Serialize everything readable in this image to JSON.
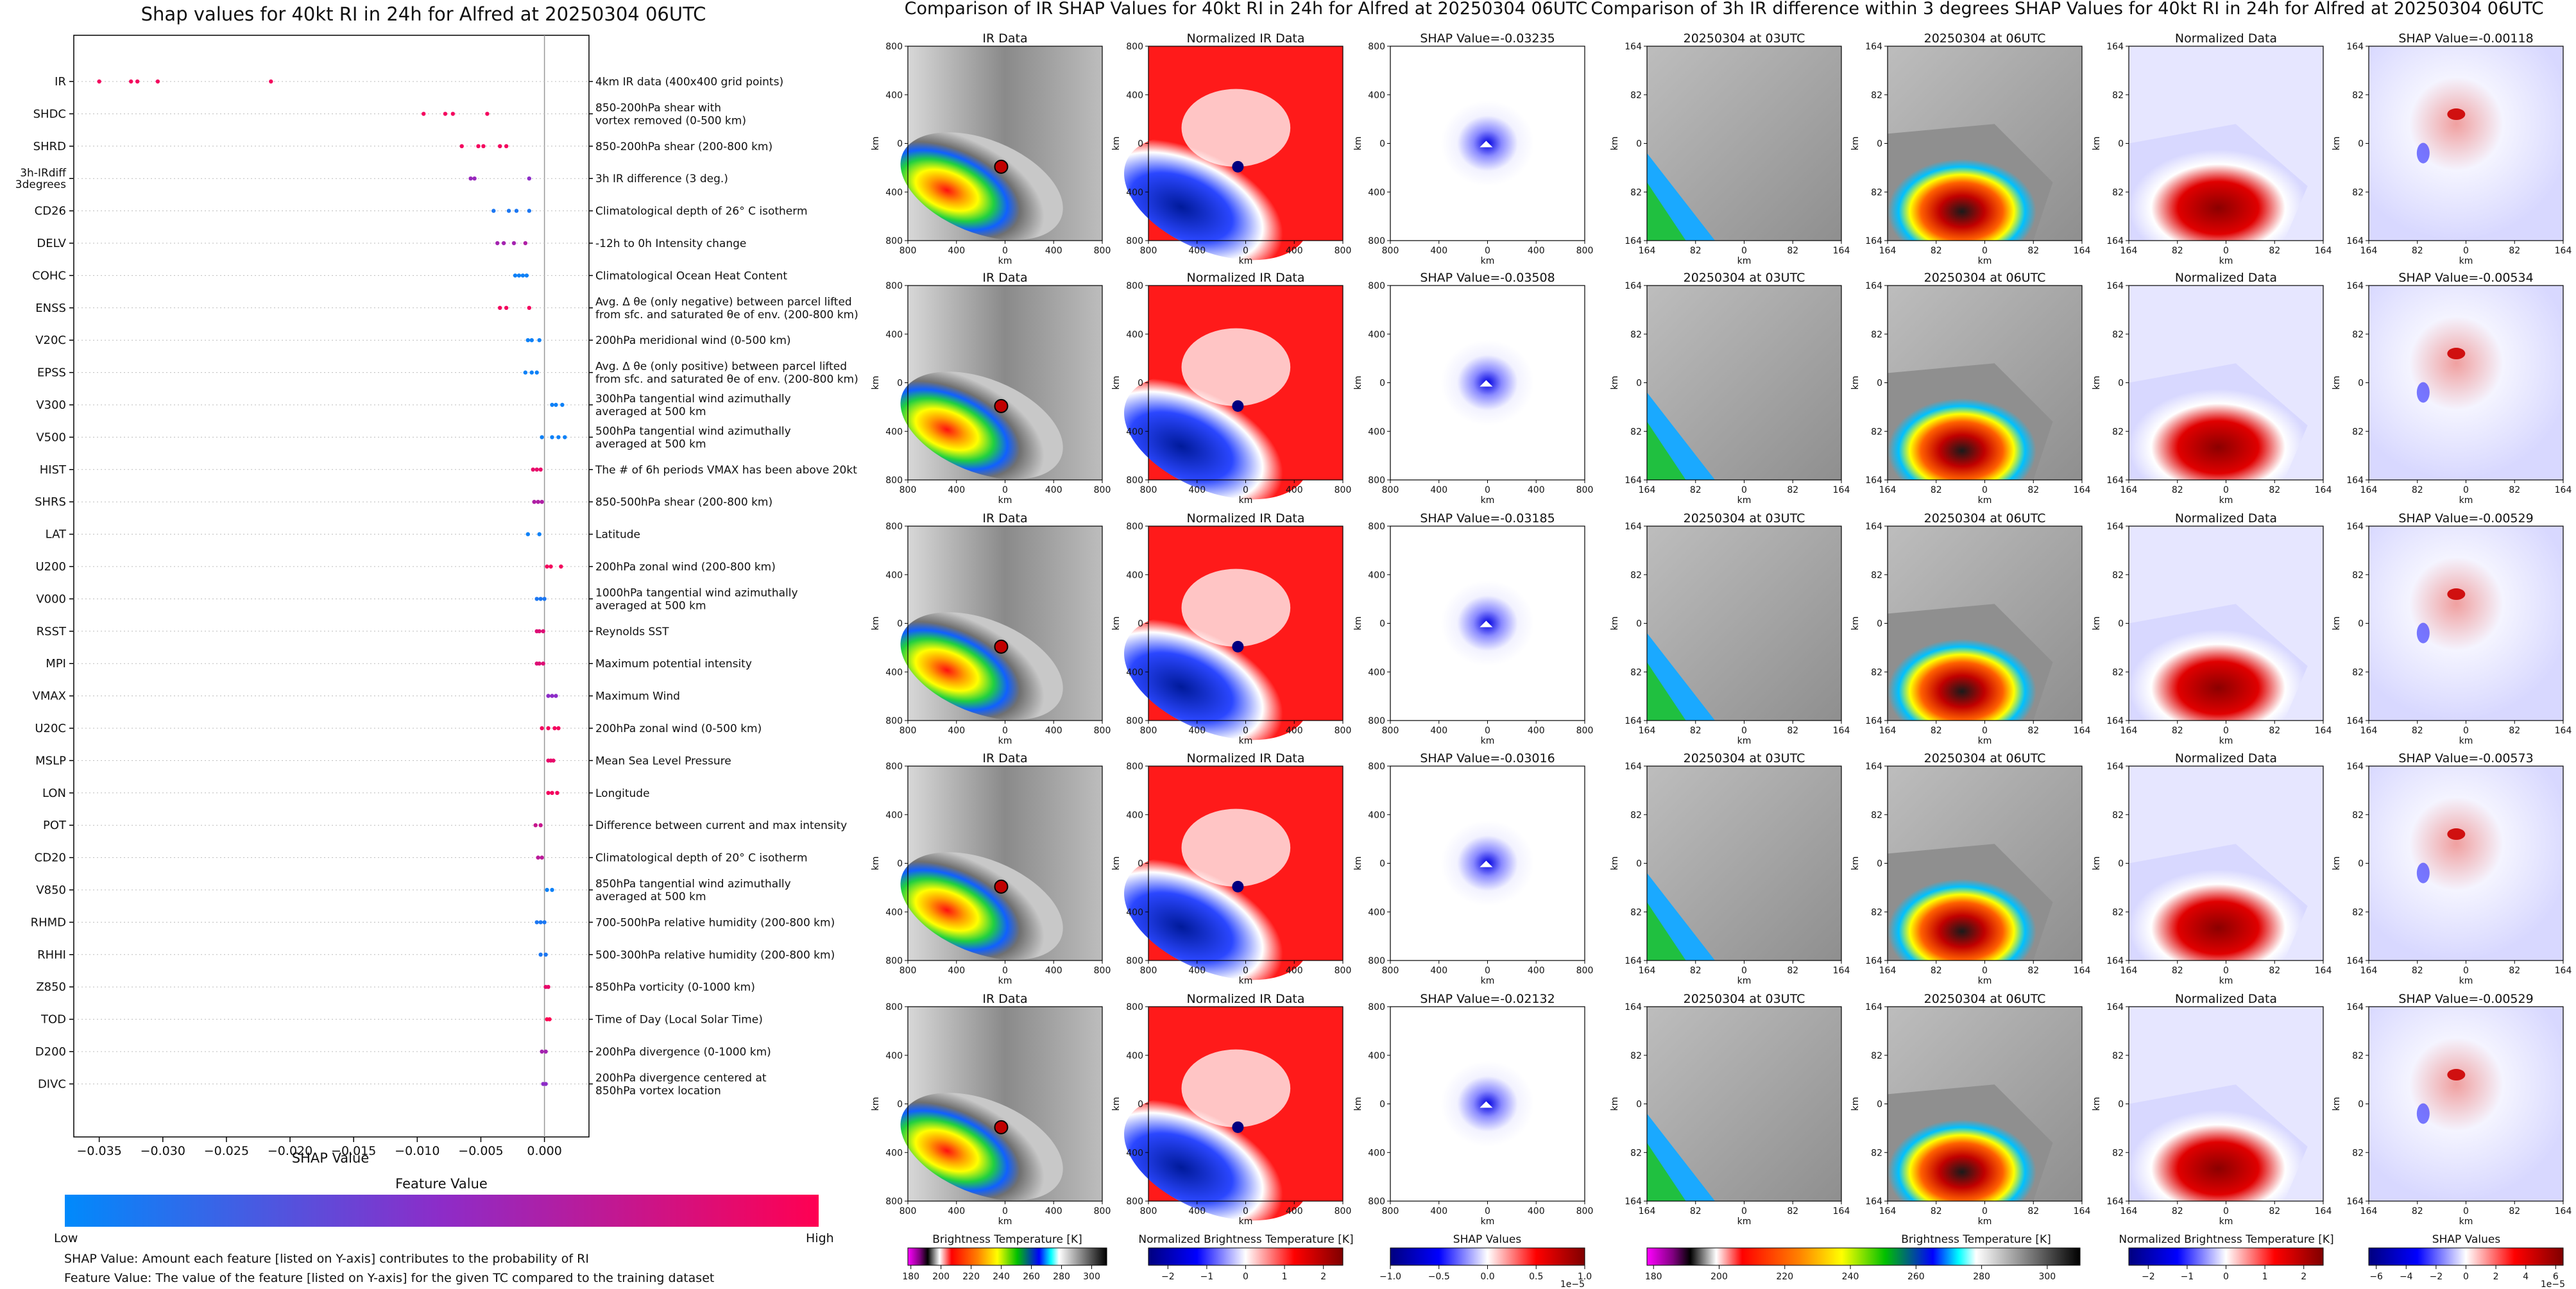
{
  "left_panel": {
    "title": "Shap values for 40kt RI in 24h for Alfred at 20250304 06UTC",
    "xlabel": "SHAP Value",
    "x_ticks": [
      "−0.035",
      "−0.030",
      "−0.025",
      "−0.020",
      "−0.015",
      "−0.010",
      "−0.005",
      "0.000"
    ],
    "x_tick_values": [
      -0.035,
      -0.03,
      -0.025,
      -0.02,
      -0.015,
      -0.01,
      -0.005,
      0.0
    ],
    "xlim": [
      -0.037,
      0.0035
    ],
    "feature_value_title": "Feature Value",
    "low_label": "Low",
    "high_label": "High",
    "note_1": "SHAP Value: Amount each feature [listed on Y-axis] contributes to the probability of RI",
    "note_2": "Feature Value: The value of the feature [listed on Y-axis] for the given TC compared to the training dataset"
  },
  "chart_data": {
    "type": "scatter",
    "xlabel": "SHAP Value",
    "features": [
      {
        "name": "IR",
        "desc": [
          "4km IR data (400x400 grid points)"
        ],
        "points": [
          [
            -0.035,
            0.95
          ],
          [
            -0.0325,
            0.95
          ],
          [
            -0.032,
            0.95
          ],
          [
            -0.0304,
            0.95
          ],
          [
            -0.0215,
            0.95
          ]
        ]
      },
      {
        "name": "SHDC",
        "desc": [
          "850-200hPa shear with",
          "vortex removed (0-500 km)"
        ],
        "points": [
          [
            -0.0095,
            0.95
          ],
          [
            -0.0078,
            0.95
          ],
          [
            -0.0072,
            0.95
          ],
          [
            -0.0045,
            0.95
          ]
        ]
      },
      {
        "name": "SHRD",
        "desc": [
          "850-200hPa shear (200-800 km)"
        ],
        "points": [
          [
            -0.0065,
            0.95
          ],
          [
            -0.0052,
            0.95
          ],
          [
            -0.0048,
            0.95
          ],
          [
            -0.0035,
            0.95
          ],
          [
            -0.003,
            0.95
          ]
        ]
      },
      {
        "name": "3h-IRdiff 3degrees",
        "desc": [
          "3h IR difference (3 deg.)"
        ],
        "points": [
          [
            -0.0058,
            0.55
          ],
          [
            -0.0055,
            0.55
          ],
          [
            -0.0012,
            0.5
          ]
        ]
      },
      {
        "name": "CD26",
        "desc": [
          "Climatological depth of 26° C isotherm"
        ],
        "points": [
          [
            -0.004,
            0.1
          ],
          [
            -0.0028,
            0.1
          ],
          [
            -0.0022,
            0.1
          ],
          [
            -0.0012,
            0.1
          ]
        ]
      },
      {
        "name": "DELV",
        "desc": [
          "-12h to 0h Intensity change"
        ],
        "points": [
          [
            -0.0037,
            0.6
          ],
          [
            -0.0032,
            0.6
          ],
          [
            -0.0024,
            0.6
          ],
          [
            -0.0015,
            0.65
          ]
        ]
      },
      {
        "name": "COHC",
        "desc": [
          "Climatological Ocean Heat Content"
        ],
        "points": [
          [
            -0.0023,
            0.05
          ],
          [
            -0.002,
            0.05
          ],
          [
            -0.0017,
            0.05
          ],
          [
            -0.0014,
            0.05
          ]
        ]
      },
      {
        "name": "ENSS",
        "desc": [
          "Avg. Δ θe (only negative) between parcel lifted",
          "from sfc. and saturated θe of env. (200-800 km)"
        ],
        "points": [
          [
            -0.0035,
            0.95
          ],
          [
            -0.003,
            0.95
          ],
          [
            -0.0012,
            0.95
          ]
        ]
      },
      {
        "name": "V20C",
        "desc": [
          "200hPa meridional wind (0-500 km)"
        ],
        "points": [
          [
            -0.0013,
            0.05
          ],
          [
            -0.001,
            0.05
          ],
          [
            -0.0004,
            0.05
          ]
        ]
      },
      {
        "name": "EPSS",
        "desc": [
          "Avg. Δ θe (only positive) between parcel lifted",
          "from sfc. and saturated θe of env. (200-800 km)"
        ],
        "points": [
          [
            -0.0015,
            0.05
          ],
          [
            -0.001,
            0.05
          ],
          [
            -0.0006,
            0.05
          ]
        ]
      },
      {
        "name": "V300",
        "desc": [
          "300hPa tangential wind azimuthally",
          "averaged at 500 km"
        ],
        "points": [
          [
            0.0006,
            0.05
          ],
          [
            0.0009,
            0.05
          ],
          [
            0.0014,
            0.05
          ]
        ]
      },
      {
        "name": "V500",
        "desc": [
          "500hPa tangential wind azimuthally",
          "averaged at 500 km"
        ],
        "points": [
          [
            -0.0002,
            0.05
          ],
          [
            0.0006,
            0.05
          ],
          [
            0.0011,
            0.05
          ],
          [
            0.0016,
            0.05
          ]
        ]
      },
      {
        "name": "HIST",
        "desc": [
          "The # of 6h periods VMAX has been above 20kt"
        ],
        "points": [
          [
            -0.0009,
            0.9
          ],
          [
            -0.0006,
            0.9
          ],
          [
            -0.0003,
            0.9
          ]
        ]
      },
      {
        "name": "SHRS",
        "desc": [
          "850-500hPa shear (200-800 km)"
        ],
        "points": [
          [
            -0.0008,
            0.65
          ],
          [
            -0.0005,
            0.65
          ],
          [
            -0.0002,
            0.65
          ]
        ]
      },
      {
        "name": "LAT",
        "desc": [
          "Latitude"
        ],
        "points": [
          [
            -0.0013,
            0.05
          ],
          [
            -0.0004,
            0.05
          ]
        ]
      },
      {
        "name": "U200",
        "desc": [
          "200hPa zonal wind (200-800 km)"
        ],
        "points": [
          [
            0.0002,
            0.95
          ],
          [
            0.0005,
            0.95
          ],
          [
            0.0013,
            0.95
          ]
        ]
      },
      {
        "name": "V000",
        "desc": [
          "1000hPa tangential wind azimuthally",
          "averaged at 500 km"
        ],
        "points": [
          [
            -0.0006,
            0.1
          ],
          [
            -0.0003,
            0.1
          ],
          [
            0.0,
            0.1
          ]
        ]
      },
      {
        "name": "RSST",
        "desc": [
          "Reynolds SST"
        ],
        "points": [
          [
            -0.0006,
            0.85
          ],
          [
            -0.0004,
            0.85
          ],
          [
            -0.0001,
            0.85
          ]
        ]
      },
      {
        "name": "MPI",
        "desc": [
          "Maximum potential intensity"
        ],
        "points": [
          [
            -0.0006,
            0.85
          ],
          [
            -0.0004,
            0.85
          ],
          [
            -0.0001,
            0.85
          ]
        ]
      },
      {
        "name": "VMAX",
        "desc": [
          "Maximum Wind"
        ],
        "points": [
          [
            0.0003,
            0.5
          ],
          [
            0.0006,
            0.5
          ],
          [
            0.0009,
            0.5
          ]
        ]
      },
      {
        "name": "U20C",
        "desc": [
          "200hPa zonal wind (0-500 km)"
        ],
        "points": [
          [
            -0.0002,
            0.95
          ],
          [
            0.0003,
            0.95
          ],
          [
            0.0008,
            0.95
          ],
          [
            0.0011,
            0.95
          ]
        ]
      },
      {
        "name": "MSLP",
        "desc": [
          "Mean Sea Level Pressure"
        ],
        "points": [
          [
            0.0003,
            0.9
          ],
          [
            0.0005,
            0.9
          ],
          [
            0.0007,
            0.9
          ]
        ]
      },
      {
        "name": "LON",
        "desc": [
          "Longitude"
        ],
        "points": [
          [
            0.0003,
            0.95
          ],
          [
            0.0006,
            0.95
          ],
          [
            0.001,
            0.95
          ]
        ]
      },
      {
        "name": "POT",
        "desc": [
          "Difference between current and max intensity"
        ],
        "points": [
          [
            -0.0007,
            0.75
          ],
          [
            -0.0003,
            0.75
          ]
        ]
      },
      {
        "name": "CD20",
        "desc": [
          "Climatological depth of 20° C isotherm"
        ],
        "points": [
          [
            -0.0005,
            0.7
          ],
          [
            -0.0002,
            0.7
          ]
        ]
      },
      {
        "name": "V850",
        "desc": [
          "850hPa tangential wind azimuthally",
          "averaged at 500 km"
        ],
        "points": [
          [
            0.0002,
            0.05
          ],
          [
            0.0006,
            0.05
          ]
        ]
      },
      {
        "name": "RHMD",
        "desc": [
          "700-500hPa relative humidity (200-800 km)"
        ],
        "points": [
          [
            -0.0006,
            0.1
          ],
          [
            -0.0003,
            0.1
          ],
          [
            0.0,
            0.1
          ]
        ]
      },
      {
        "name": "RHHI",
        "desc": [
          "500-300hPa relative humidity (200-800 km)"
        ],
        "points": [
          [
            -0.0003,
            0.1
          ],
          [
            0.0001,
            0.1
          ]
        ]
      },
      {
        "name": "Z850",
        "desc": [
          "850hPa vorticity (0-1000 km)"
        ],
        "points": [
          [
            0.0001,
            0.9
          ],
          [
            0.0003,
            0.9
          ]
        ]
      },
      {
        "name": "TOD",
        "desc": [
          "Time of Day (Local Solar Time)"
        ],
        "points": [
          [
            0.0002,
            1.0
          ],
          [
            0.0004,
            1.0
          ]
        ]
      },
      {
        "name": "D200",
        "desc": [
          "200hPa divergence (0-1000 km)"
        ],
        "points": [
          [
            -0.0002,
            0.6
          ],
          [
            0.0001,
            0.6
          ]
        ]
      },
      {
        "name": "DIVC",
        "desc": [
          "200hPa divergence centered at",
          "850hPa vortex location"
        ],
        "points": [
          [
            -0.0001,
            0.5
          ],
          [
            0.0001,
            0.5
          ]
        ]
      }
    ]
  },
  "mid_panel": {
    "title": "Comparison of IR SHAP Values for 40kt RI in 24h for Alfred at 20250304 06UTC",
    "col_titles": [
      "IR Data",
      "Normalized IR Data"
    ],
    "shap_titles": [
      "SHAP Value=-0.03235",
      "SHAP Value=-0.03508",
      "SHAP Value=-0.03185",
      "SHAP Value=-0.03016",
      "SHAP Value=-0.02132"
    ],
    "x_ticks": [
      "800",
      "400",
      "0",
      "400",
      "800"
    ],
    "y_ticks": [
      "800",
      "400",
      "0",
      "400",
      "800"
    ],
    "axis_label": "km",
    "cbar1_label": "Brightness Temperature [K]",
    "cbar1_ticks": [
      "180",
      "200",
      "220",
      "240",
      "260",
      "280",
      "300"
    ],
    "cbar2_label": "Normalized Brightness Temperature [K]",
    "cbar2_ticks": [
      "−2",
      "−1",
      "0",
      "1",
      "2"
    ],
    "cbar3_label": "SHAP Values",
    "cbar3_ticks": [
      "−1.0",
      "−0.5",
      "0.0",
      "0.5",
      "1.0"
    ],
    "cbar3_exp": "1e−5"
  },
  "right_panel": {
    "title": "Comparison of 3h IR difference within 3 degrees SHAP Values for 40kt RI in 24h for Alfred at 20250304 06UTC",
    "col_titles": [
      "20250304 at 03UTC",
      "20250304 at 06UTC",
      "Normalized Data"
    ],
    "shap_titles": [
      "SHAP Value=-0.00118",
      "SHAP Value=-0.00534",
      "SHAP Value=-0.00529",
      "SHAP Value=-0.00573",
      "SHAP Value=-0.00529"
    ],
    "x_ticks": [
      "164",
      "82",
      "0",
      "82",
      "164"
    ],
    "y_ticks": [
      "164",
      "82",
      "0",
      "82",
      "164"
    ],
    "axis_label": "km",
    "cbar1_label": "Brightness Temperature [K]",
    "cbar1_ticks": [
      "180",
      "200",
      "220",
      "240",
      "260",
      "280",
      "300"
    ],
    "cbar2_label": "Normalized Brightness Temperature [K]",
    "cbar2_ticks": [
      "−2",
      "−1",
      "0",
      "1",
      "2"
    ],
    "cbar3_label": "SHAP Values",
    "cbar3_ticks": [
      "−6",
      "−4",
      "−2",
      "0",
      "2",
      "4",
      "6"
    ],
    "cbar3_exp": "1e−5"
  },
  "colors": {
    "low": "#008afc",
    "mid": "#8d2cc8",
    "high": "#ff0052"
  }
}
